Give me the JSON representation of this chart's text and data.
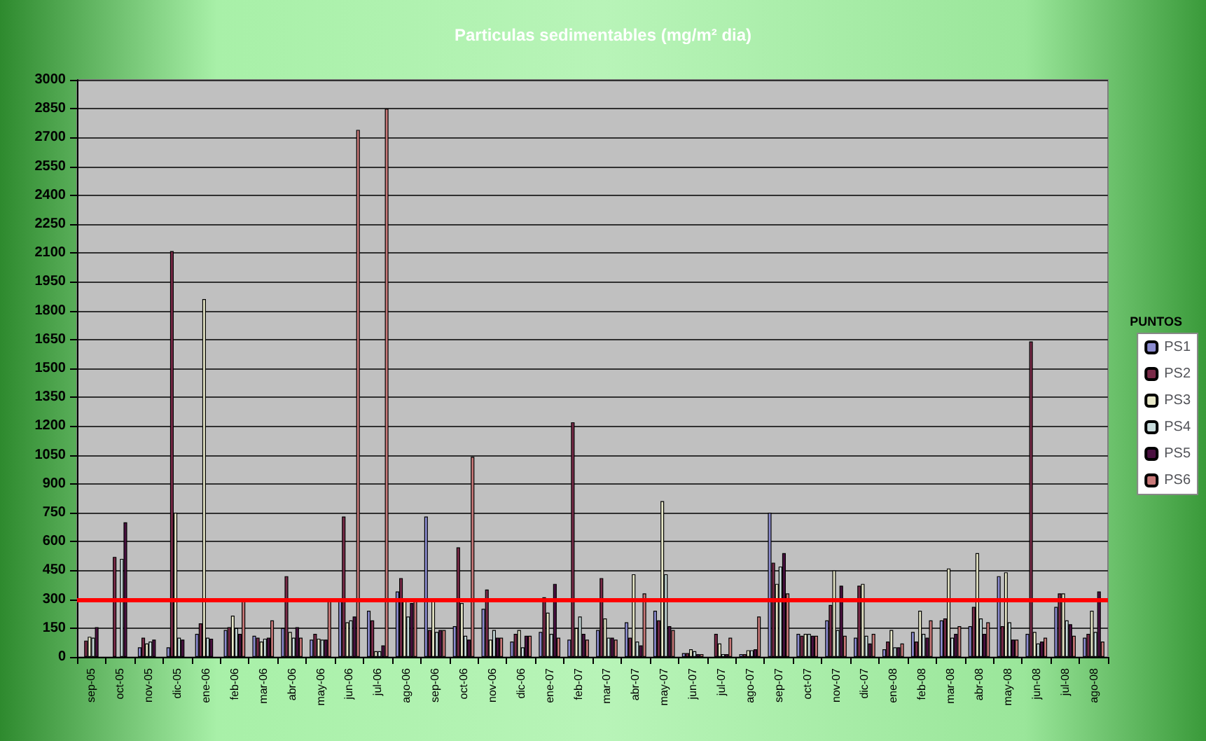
{
  "chart_data": {
    "type": "bar",
    "title": "Particulas sedimentables (mg/m² dia)",
    "legend_title": "PUNTOS",
    "categories": [
      "sep-05",
      "oct-05",
      "nov-05",
      "dic-05",
      "ene-06",
      "feb-06",
      "mar-06",
      "abr-06",
      "may-06",
      "jun-06",
      "jul-06",
      "ago-06",
      "sep-06",
      "oct-06",
      "nov-06",
      "dic-06",
      "ene-07",
      "feb-07",
      "mar-07",
      "abr-07",
      "may-07",
      "jun-07",
      "jul-07",
      "ago-07",
      "sep-07",
      "oct-07",
      "nov-07",
      "dic-07",
      "ene-08",
      "feb-08",
      "mar-08",
      "abr-08",
      "may-08",
      "jun-08",
      "jul-08",
      "ago-08"
    ],
    "series": [
      {
        "name": "PS1",
        "color": "#8c8cd0",
        "values": [
          null,
          null,
          50,
          50,
          120,
          140,
          110,
          150,
          90,
          290,
          240,
          340,
          730,
          160,
          250,
          80,
          130,
          90,
          140,
          180,
          240,
          20,
          null,
          15,
          750,
          120,
          190,
          100,
          40,
          130,
          190,
          160,
          420,
          120,
          260,
          100
        ]
      },
      {
        "name": "PS2",
        "color": "#7a2a48",
        "values": [
          85,
          520,
          100,
          2110,
          175,
          155,
          100,
          420,
          120,
          730,
          190,
          410,
          140,
          570,
          350,
          120,
          310,
          1220,
          410,
          100,
          190,
          20,
          120,
          15,
          490,
          110,
          270,
          370,
          80,
          80,
          200,
          260,
          160,
          1640,
          330,
          120
        ]
      },
      {
        "name": "PS3",
        "color": "#e8e8c8",
        "values": [
          105,
          null,
          70,
          750,
          1860,
          215,
          80,
          130,
          95,
          180,
          30,
          300,
          290,
          280,
          90,
          140,
          230,
          150,
          200,
          430,
          810,
          40,
          70,
          35,
          380,
          120,
          450,
          380,
          140,
          240,
          460,
          540,
          440,
          130,
          330,
          240
        ]
      },
      {
        "name": "PS4",
        "color": "#c8dcdc",
        "values": [
          100,
          510,
          80,
          100,
          100,
          150,
          95,
          100,
          90,
          190,
          30,
          210,
          130,
          110,
          140,
          50,
          120,
          210,
          100,
          80,
          430,
          30,
          15,
          35,
          470,
          120,
          140,
          110,
          50,
          120,
          100,
          200,
          180,
          70,
          190,
          130
        ]
      },
      {
        "name": "PS5",
        "color": "#4a1040",
        "values": [
          155,
          700,
          90,
          90,
          95,
          120,
          100,
          155,
          90,
          210,
          60,
          280,
          140,
          90,
          100,
          110,
          380,
          120,
          100,
          60,
          160,
          15,
          15,
          40,
          540,
          110,
          370,
          70,
          50,
          100,
          120,
          120,
          90,
          80,
          170,
          340
        ]
      },
      {
        "name": "PS6",
        "color": "#c87878",
        "values": [
          null,
          null,
          null,
          null,
          null,
          290,
          190,
          100,
          290,
          2740,
          2850,
          290,
          140,
          1040,
          100,
          110,
          100,
          90,
          90,
          330,
          140,
          15,
          100,
          210,
          330,
          110,
          110,
          120,
          70,
          190,
          160,
          180,
          90,
          100,
          110,
          80
        ]
      }
    ],
    "ylim": [
      0,
      3000
    ],
    "yticks": [
      0,
      150,
      300,
      450,
      600,
      750,
      900,
      1050,
      1200,
      1350,
      1500,
      1650,
      1800,
      1950,
      2100,
      2250,
      2400,
      2550,
      2700,
      2850,
      3000
    ],
    "grid": "y",
    "legend": "right",
    "ref_lines": [
      {
        "axis": "y",
        "value": 300,
        "color": "#ff0000"
      }
    ]
  }
}
